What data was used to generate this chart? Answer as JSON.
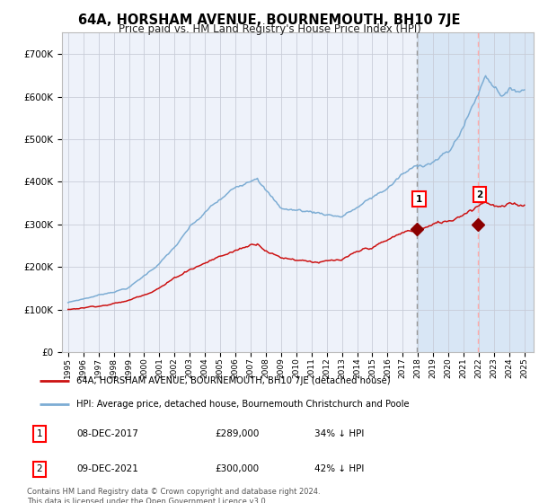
{
  "title": "64A, HORSHAM AVENUE, BOURNEMOUTH, BH10 7JE",
  "subtitle": "Price paid vs. HM Land Registry's House Price Index (HPI)",
  "bg_color": "#ffffff",
  "plot_bg_color": "#eef2fa",
  "highlight_bg_color": "#d8e6f5",
  "grid_color": "#c8ccd8",
  "hpi_color": "#7dadd4",
  "price_color": "#cc1111",
  "marker_color": "#8b0000",
  "vline1_color": "#aaaaaa",
  "vline2_color": "#ffaaaa",
  "point1_year": 2017.92,
  "point1_value": 289000,
  "point2_year": 2021.92,
  "point2_value": 300000,
  "ylim": [
    0,
    750000
  ],
  "xlim_start": 1994.6,
  "xlim_end": 2025.6,
  "legend_entries": [
    "64A, HORSHAM AVENUE, BOURNEMOUTH, BH10 7JE (detached house)",
    "HPI: Average price, detached house, Bournemouth Christchurch and Poole"
  ],
  "table_rows": [
    [
      "1",
      "08-DEC-2017",
      "£289,000",
      "34% ↓ HPI"
    ],
    [
      "2",
      "09-DEC-2021",
      "£300,000",
      "42% ↓ HPI"
    ]
  ],
  "footnote": "Contains HM Land Registry data © Crown copyright and database right 2024.\nThis data is licensed under the Open Government Licence v3.0.",
  "yticks": [
    0,
    100000,
    200000,
    300000,
    400000,
    500000,
    600000,
    700000
  ],
  "ytick_labels": [
    "£0",
    "£100K",
    "£200K",
    "£300K",
    "£400K",
    "£500K",
    "£600K",
    "£700K"
  ],
  "xticks": [
    1995,
    1996,
    1997,
    1998,
    1999,
    2000,
    2001,
    2002,
    2003,
    2004,
    2005,
    2006,
    2007,
    2008,
    2009,
    2010,
    2011,
    2012,
    2013,
    2014,
    2015,
    2016,
    2017,
    2018,
    2019,
    2020,
    2021,
    2022,
    2023,
    2024,
    2025
  ]
}
